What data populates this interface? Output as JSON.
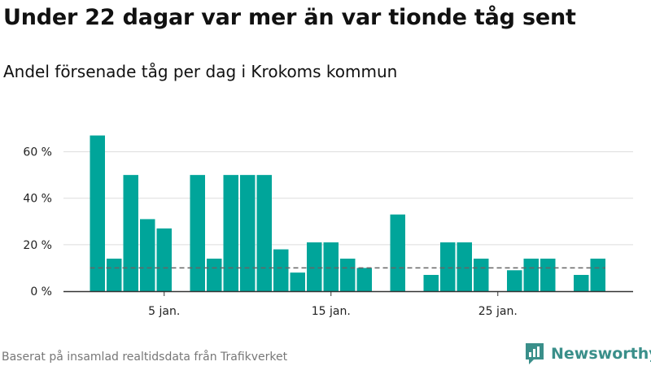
{
  "title": "Under 22 dagar var mer än var tionde tåg sent",
  "subtitle": "Andel försenade tåg per dag i Krokoms kommun",
  "footer": "Baserat på insamlad realtidsdata från Trafikverket",
  "brand": "Newsworthy",
  "colors": {
    "bar": "#00a59a",
    "reference_line": "#666666",
    "grid": "#dddddd",
    "axis": "#333333",
    "brand": "#3a8f8a"
  },
  "chart_data": {
    "type": "bar",
    "x": [
      1,
      2,
      3,
      4,
      5,
      6,
      7,
      8,
      9,
      10,
      11,
      12,
      13,
      14,
      15,
      16,
      17,
      18,
      19,
      20,
      21,
      22,
      23,
      24,
      25,
      26,
      27,
      28,
      29,
      30,
      31
    ],
    "values": [
      67,
      14,
      50,
      31,
      27,
      null,
      50,
      14,
      50,
      50,
      50,
      18,
      8,
      21,
      21,
      14,
      10,
      null,
      33,
      null,
      7,
      21,
      21,
      14,
      null,
      9,
      14,
      14,
      null,
      7,
      14
    ],
    "xticks": [
      5,
      15,
      25
    ],
    "xtick_labels": [
      "5 jan.",
      "15 jan.",
      "25 jan."
    ],
    "yticks": [
      0,
      20,
      40,
      60
    ],
    "ytick_labels": [
      "0 %",
      "20 %",
      "40 %",
      "60 %"
    ],
    "ylim": [
      0,
      70
    ],
    "reference_line": 10,
    "grid": true,
    "xlabel": "",
    "ylabel": ""
  }
}
